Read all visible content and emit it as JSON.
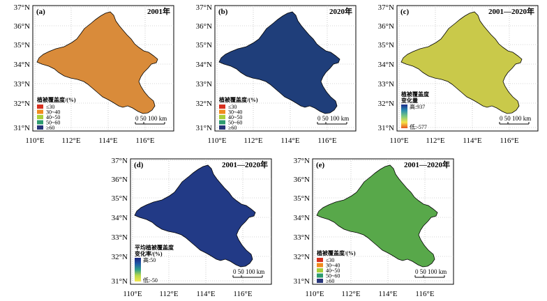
{
  "lat_labels": [
    "37°N",
    "36°N",
    "35°N",
    "34°N",
    "33°N",
    "32°N",
    "31°N"
  ],
  "lon_labels": [
    "110°E",
    "112°E",
    "114°E",
    "116°E"
  ],
  "scalebar": {
    "label": "0 50 100 km"
  },
  "colors": {
    "lt30": "#d7301f",
    "c30_40": "#f08b1e",
    "c40_50": "#a8cf3a",
    "c50_60": "#2e9b6f",
    "ge60": "#27357a",
    "border": "#000000",
    "grid": "#a9a9a9"
  },
  "panels": [
    {
      "letter": "(a)",
      "year": "2001年",
      "legend": {
        "title": "植被覆盖度/(%)",
        "items": [
          "≤30",
          "30~40",
          "40~50",
          "50~60",
          "≥60"
        ]
      }
    },
    {
      "letter": "(b)",
      "year": "2020年",
      "legend": {
        "title": "植被覆盖度/(%)",
        "items": [
          "≤30",
          "30~40",
          "40~50",
          "50~60",
          "≥60"
        ]
      }
    },
    {
      "letter": "(c)",
      "year": "2001—2020年",
      "legend": {
        "title_line1": "植被覆盖度",
        "title_line2": "变化量",
        "high": "高:937",
        "low": "低:-577"
      }
    },
    {
      "letter": "(d)",
      "year": "2001—2020年",
      "legend": {
        "title_line1": "平均植被覆盖度",
        "title_line2": "变化率/(%)",
        "high": "高:50",
        "low": "低:-50"
      }
    },
    {
      "letter": "(e)",
      "year": "2001—2020年",
      "legend": {
        "title": "植被覆盖度/(%)",
        "items": [
          "≤30",
          "30~40",
          "40~50",
          "50~60",
          "≥60"
        ]
      }
    }
  ]
}
